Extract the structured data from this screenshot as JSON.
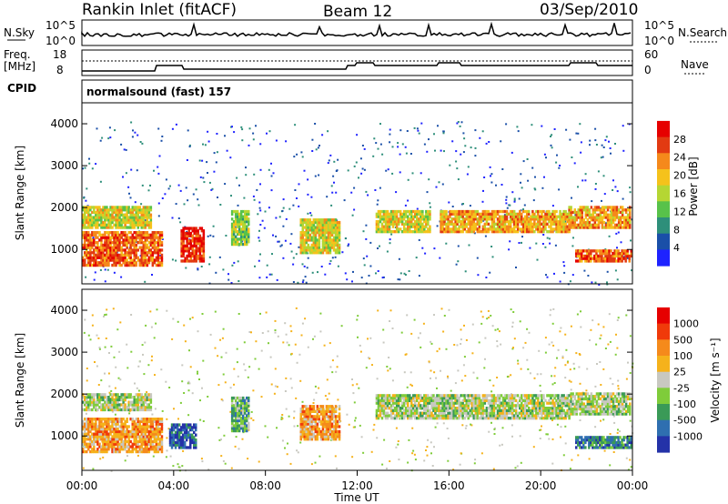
{
  "header": {
    "station": "Rankin Inlet (fitACF)",
    "beam": "Beam 12",
    "date": "03/Sep/2010"
  },
  "top_panels": {
    "nsky_label": "N.Sky",
    "nsearch_label": "N.Search",
    "nsky_ticks": [
      "10^5",
      "10^0"
    ],
    "nsearch_ticks": [
      "10^5",
      "10^0"
    ],
    "freq_label_1": "Freq.",
    "freq_label_2": "[MHz]",
    "freq_ticks": [
      "18",
      "8"
    ],
    "nave_label": "Nave",
    "nave_ticks": [
      "60",
      "0"
    ],
    "cpid_label": "CPID",
    "cpid_text": "normalsound (fast) 157"
  },
  "chart_data": [
    {
      "type": "heatmap",
      "name": "power",
      "ylabel": "Slant Range [km]",
      "yticks": [
        "4000",
        "3000",
        "2000",
        "1000"
      ],
      "ylim": [
        180,
        4500
      ],
      "x": [
        "00:00",
        "04:00",
        "08:00",
        "12:00",
        "16:00",
        "20:00",
        "00:00"
      ],
      "colorbar_label": "Power [dB]",
      "colorbar_ticks": [
        "28",
        "24",
        "20",
        "16",
        "12",
        "8",
        "4"
      ],
      "colors": [
        "#1e22ff",
        "#1a4fa8",
        "#2e8f7a",
        "#58c24a",
        "#b5d633",
        "#f5c21b",
        "#f5891b",
        "#e23a12",
        "#e60000"
      ],
      "bands": [
        {
          "t0": 0.0,
          "t1": 3.0,
          "r0": 1500,
          "r1": 2000,
          "level": 5
        },
        {
          "t0": 0.0,
          "t1": 3.5,
          "r0": 600,
          "r1": 1400,
          "level": 7
        },
        {
          "t0": 4.3,
          "t1": 5.3,
          "r0": 700,
          "r1": 1500,
          "level": 8
        },
        {
          "t0": 6.5,
          "t1": 7.3,
          "r0": 1100,
          "r1": 1900,
          "level": 4
        },
        {
          "t0": 9.5,
          "t1": 11.2,
          "r0": 900,
          "r1": 1700,
          "level": 5
        },
        {
          "t0": 12.8,
          "t1": 15.2,
          "r0": 1400,
          "r1": 1900,
          "level": 5
        },
        {
          "t0": 15.6,
          "t1": 21.2,
          "r0": 1400,
          "r1": 1900,
          "level": 6
        },
        {
          "t0": 21.2,
          "t1": 23.9,
          "r0": 1500,
          "r1": 2000,
          "level": 6
        },
        {
          "t0": 21.5,
          "t1": 23.9,
          "r0": 700,
          "r1": 1000,
          "level": 7
        }
      ]
    },
    {
      "type": "heatmap",
      "name": "velocity",
      "ylabel": "Slant Range [km]",
      "yticks": [
        "4000",
        "3000",
        "2000",
        "1000"
      ],
      "ylim": [
        180,
        4500
      ],
      "x": [
        "00:00",
        "04:00",
        "08:00",
        "12:00",
        "16:00",
        "20:00",
        "00:00"
      ],
      "xlabel": "Time UT",
      "colorbar_label": "Velocity [m s⁻¹]",
      "colorbar_ticks": [
        "1000",
        "500",
        "100",
        "25",
        "-25",
        "-100",
        "-500",
        "-1000"
      ],
      "colors": [
        "#2432a8",
        "#2f6fb0",
        "#3a9a57",
        "#7fcc3a",
        "#c8c8c0",
        "#f5b21b",
        "#f58a1b",
        "#f03a0a",
        "#e60000"
      ],
      "bands": [
        {
          "t0": 0.0,
          "t1": 3.0,
          "r0": 1600,
          "r1": 2000,
          "level": 4
        },
        {
          "t0": 0.0,
          "t1": 3.5,
          "r0": 600,
          "r1": 1400,
          "level": 6
        },
        {
          "t0": 3.8,
          "t1": 5.0,
          "r0": 700,
          "r1": 1300,
          "level": 1
        },
        {
          "t0": 6.5,
          "t1": 7.3,
          "r0": 1100,
          "r1": 1900,
          "level": 3
        },
        {
          "t0": 9.5,
          "t1": 11.2,
          "r0": 900,
          "r1": 1700,
          "level": 6
        },
        {
          "t0": 12.8,
          "t1": 21.2,
          "r0": 1400,
          "r1": 1950,
          "level": 4
        },
        {
          "t0": 21.2,
          "t1": 23.9,
          "r0": 1500,
          "r1": 2000,
          "level": 4
        },
        {
          "t0": 21.5,
          "t1": 23.9,
          "r0": 700,
          "r1": 1000,
          "level": 2
        }
      ]
    }
  ]
}
